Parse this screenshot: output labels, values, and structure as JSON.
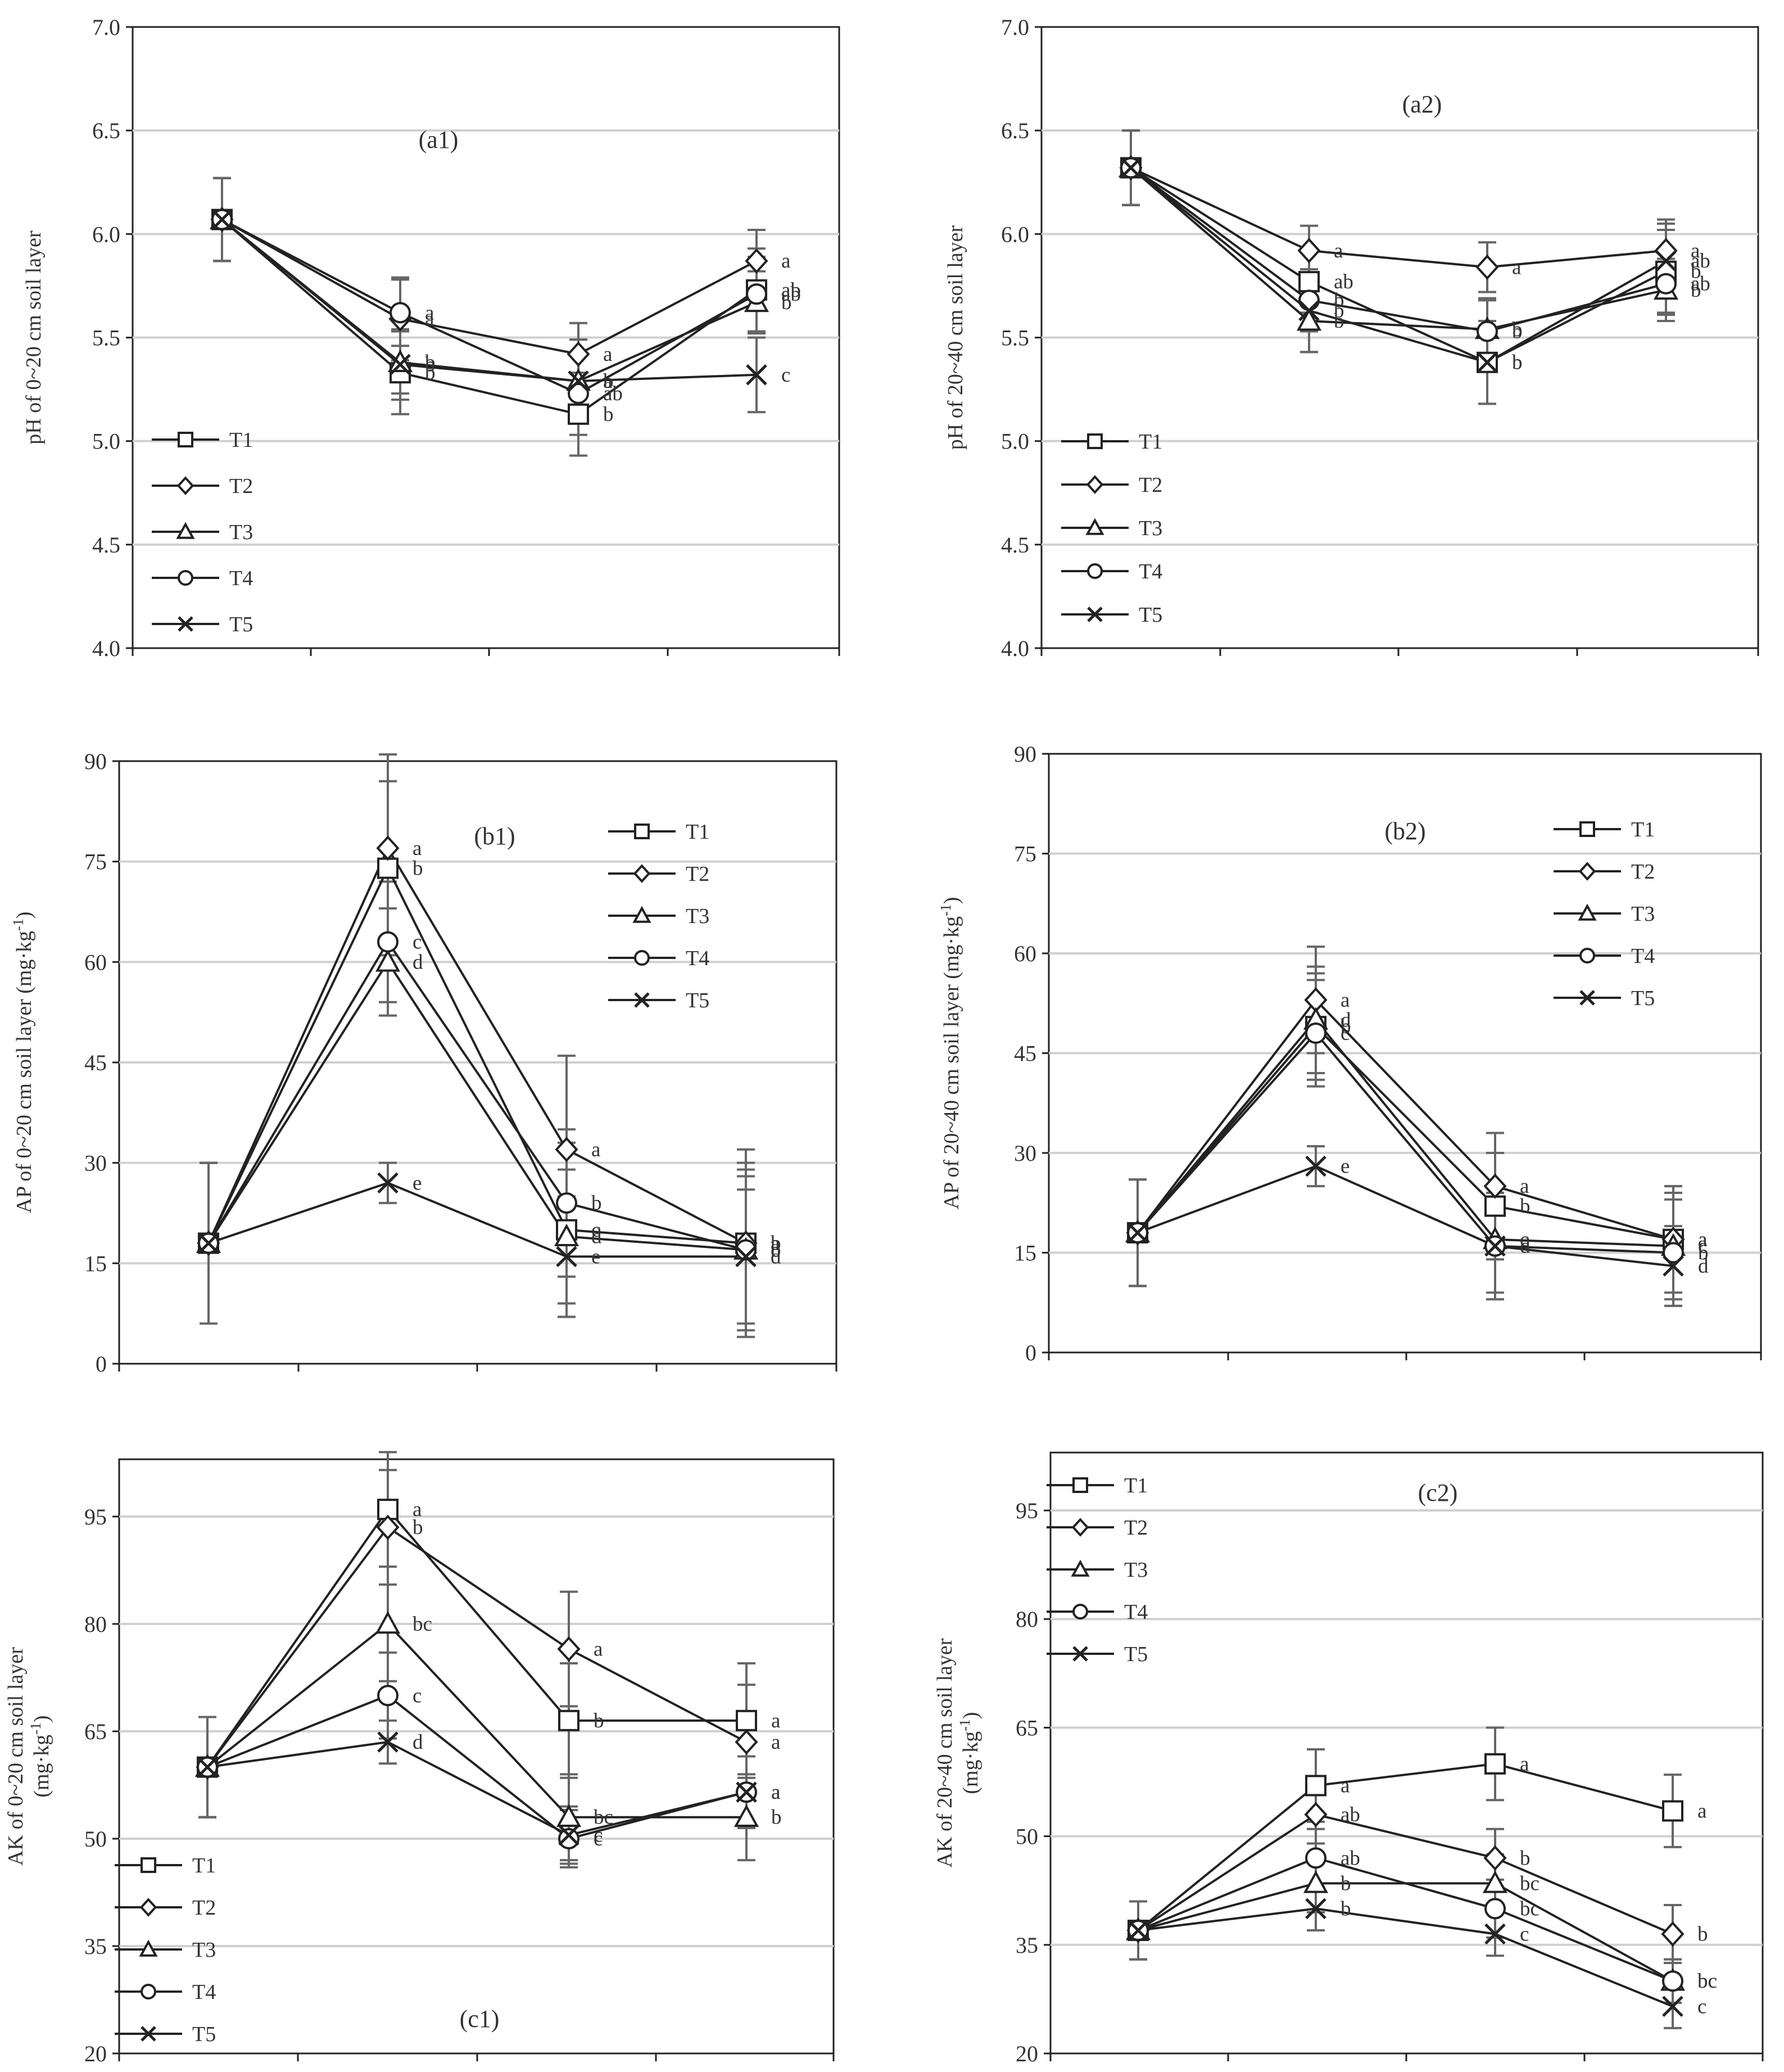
{
  "chart_data": [
    {
      "type": "line",
      "title": "(a1)",
      "ylabel": "pH of 0~20 cm soil layer",
      "ylim": [
        4.0,
        7.0
      ],
      "yticks": [
        "4.0",
        "4.5",
        "5.0",
        "5.5",
        "6.0",
        "6.5",
        "7.0"
      ],
      "legend": "bottom-left",
      "series": [
        {
          "name": "T1",
          "values": [
            6.07,
            5.33,
            5.13,
            5.73
          ],
          "errors": [
            0.2,
            0.2,
            0.2,
            0.2
          ]
        },
        {
          "name": "T2",
          "values": [
            6.07,
            5.59,
            5.42,
            5.87
          ],
          "errors": [
            0.2,
            0.2,
            0.15,
            0.15
          ]
        },
        {
          "name": "T3",
          "values": [
            6.07,
            5.38,
            5.29,
            5.67
          ],
          "errors": [
            0.2,
            0.15,
            0.2,
            0.15
          ]
        },
        {
          "name": "T4",
          "values": [
            6.07,
            5.62,
            5.23,
            5.71
          ],
          "errors": [
            0.2,
            0.16,
            0.2,
            0.18
          ]
        },
        {
          "name": "T5",
          "values": [
            6.07,
            5.37,
            5.29,
            5.32
          ],
          "errors": [
            0.2,
            0.17,
            0.2,
            0.18
          ]
        }
      ],
      "letters": [
        [
          "",
          "b",
          "b",
          "ab"
        ],
        [
          "",
          "a",
          "a",
          "a"
        ],
        [
          "",
          "b",
          "a",
          "b"
        ],
        [
          "",
          "a",
          "ab",
          "ab"
        ],
        [
          "",
          "b",
          "b",
          "c"
        ]
      ]
    },
    {
      "type": "line",
      "title": "(a2)",
      "ylabel": "pH of 20~40 cm soil layer",
      "ylim": [
        4.0,
        7.0
      ],
      "yticks": [
        "4.0",
        "4.5",
        "5.0",
        "5.5",
        "6.0",
        "6.5",
        "7.0"
      ],
      "legend": "bottom-left",
      "series": [
        {
          "name": "T1",
          "values": [
            6.32,
            5.77,
            5.38,
            5.82
          ],
          "errors": [
            0.18,
            0.15,
            0.2,
            0.2
          ]
        },
        {
          "name": "T2",
          "values": [
            6.32,
            5.92,
            5.84,
            5.92
          ],
          "errors": [
            0.18,
            0.12,
            0.12,
            0.15
          ]
        },
        {
          "name": "T3",
          "values": [
            6.32,
            5.58,
            5.54,
            5.73
          ],
          "errors": [
            0.18,
            0.15,
            0.15,
            0.15
          ]
        },
        {
          "name": "T4",
          "values": [
            6.32,
            5.68,
            5.53,
            5.76
          ],
          "errors": [
            0.18,
            0.15,
            0.15,
            0.15
          ]
        },
        {
          "name": "T5",
          "values": [
            6.32,
            5.63,
            5.38,
            5.87
          ],
          "errors": [
            0.18,
            0.2,
            0.2,
            0.18
          ]
        }
      ],
      "letters": [
        [
          "",
          "ab",
          "b",
          "b"
        ],
        [
          "",
          "a",
          "a",
          "a"
        ],
        [
          "",
          "b",
          "b",
          "b"
        ],
        [
          "",
          "b",
          "b",
          "ab"
        ],
        [
          "",
          "b",
          "b",
          "ab"
        ]
      ]
    },
    {
      "type": "line",
      "title": "(b1)",
      "ylabel": "AP of 0~20 cm soil layer (mg·kg",
      "ylabel_sup": "-1",
      "ylabel_end": ")",
      "ylim": [
        0,
        90
      ],
      "yticks": [
        "0",
        "15",
        "30",
        "45",
        "60",
        "75",
        "90"
      ],
      "legend": "top-right",
      "series": [
        {
          "name": "T1",
          "values": [
            18,
            74,
            20,
            18
          ],
          "errors": [
            12,
            13,
            13,
            12
          ]
        },
        {
          "name": "T2",
          "values": [
            18,
            77,
            32,
            18
          ],
          "errors": [
            12,
            14,
            14,
            14
          ]
        },
        {
          "name": "T3",
          "values": [
            18,
            60,
            19,
            17
          ],
          "errors": [
            12,
            8,
            10,
            11
          ]
        },
        {
          "name": "T4",
          "values": [
            18,
            63,
            24,
            17
          ],
          "errors": [
            12,
            9,
            11,
            12
          ]
        },
        {
          "name": "T5",
          "values": [
            18,
            27,
            16,
            16
          ],
          "errors": [
            12,
            3,
            9,
            10
          ]
        }
      ],
      "letters": [
        [
          "",
          "b",
          "c",
          "b"
        ],
        [
          "",
          "a",
          "a",
          "a"
        ],
        [
          "",
          "d",
          "d",
          "c"
        ],
        [
          "",
          "c",
          "b",
          "b"
        ],
        [
          "",
          "e",
          "e",
          "d"
        ]
      ]
    },
    {
      "type": "line",
      "title": "(b2)",
      "ylabel": "AP of 20~40 cm soil layer (mg·kg",
      "ylabel_sup": "-1",
      "ylabel_end": ")",
      "ylim": [
        0,
        90
      ],
      "yticks": [
        "0",
        "15",
        "30",
        "45",
        "60",
        "75",
        "90"
      ],
      "legend": "top-right",
      "series": [
        {
          "name": "T1",
          "values": [
            18,
            49,
            22,
            17
          ],
          "errors": [
            8,
            8,
            8,
            8
          ]
        },
        {
          "name": "T2",
          "values": [
            18,
            53,
            25,
            17
          ],
          "errors": [
            8,
            8,
            8,
            8
          ]
        },
        {
          "name": "T3",
          "values": [
            18,
            50,
            17,
            16
          ],
          "errors": [
            8,
            8,
            8,
            8
          ]
        },
        {
          "name": "T4",
          "values": [
            18,
            48,
            16,
            15
          ],
          "errors": [
            8,
            8,
            8,
            8
          ]
        },
        {
          "name": "T5",
          "values": [
            18,
            28,
            16,
            13
          ],
          "errors": [
            8,
            3,
            8,
            6
          ]
        }
      ],
      "letters": [
        [
          "",
          "b",
          "b",
          "a"
        ],
        [
          "",
          "a",
          "a",
          "a"
        ],
        [
          "",
          "d",
          "c",
          "c"
        ],
        [
          "",
          "c",
          "d",
          "b"
        ],
        [
          "",
          "e",
          "d",
          "d"
        ]
      ]
    },
    {
      "type": "line",
      "title": "(c1)",
      "ylabel": "AK of 0~20 cm soil layer",
      "ylabel2": "(mg·kg",
      "ylabel2_sup": "-1",
      "ylabel2_end": ")",
      "ylim": [
        20,
        103
      ],
      "yticks": [
        "20",
        "35",
        "50",
        "65",
        "80",
        "95"
      ],
      "legend": "bottom-left",
      "series": [
        {
          "name": "T1",
          "values": [
            60,
            96,
            66.5,
            66.5
          ],
          "errors": [
            7,
            8,
            8,
            8
          ]
        },
        {
          "name": "T2",
          "values": [
            60,
            93.5,
            76.5,
            63.5
          ],
          "errors": [
            7,
            8,
            8,
            8
          ]
        },
        {
          "name": "T3",
          "values": [
            60,
            80,
            53,
            53
          ],
          "errors": [
            7,
            8,
            6,
            6
          ]
        },
        {
          "name": "T4",
          "values": [
            60,
            70,
            50,
            56.5
          ],
          "errors": [
            7,
            6,
            4,
            5
          ]
        },
        {
          "name": "T5",
          "values": [
            60,
            63.5,
            50.5,
            56.5
          ],
          "errors": [
            7,
            3,
            4,
            5
          ]
        }
      ],
      "letters": [
        [
          "",
          "a",
          "b",
          "a"
        ],
        [
          "",
          "b",
          "a",
          "a"
        ],
        [
          "",
          "bc",
          "bc",
          "b"
        ],
        [
          "",
          "c",
          "c",
          "a"
        ],
        [
          "",
          "d",
          "c",
          "a"
        ]
      ]
    },
    {
      "type": "line",
      "title": "(c2)",
      "ylabel": "AK of 20~40 cm soil layer",
      "ylabel2": "(mg·kg",
      "ylabel2_sup": "-1",
      "ylabel2_end": ")",
      "ylim": [
        20,
        103
      ],
      "yticks": [
        "20",
        "35",
        "50",
        "65",
        "80",
        "95"
      ],
      "legend": "top-left",
      "series": [
        {
          "name": "T1",
          "values": [
            37,
            57,
            60,
            53.5
          ],
          "errors": [
            4,
            5,
            5,
            5
          ]
        },
        {
          "name": "T2",
          "values": [
            37,
            53,
            47,
            36.5
          ],
          "errors": [
            4,
            4,
            4,
            4
          ]
        },
        {
          "name": "T3",
          "values": [
            37,
            43.5,
            43.5,
            30
          ],
          "errors": [
            4,
            4,
            4,
            3
          ]
        },
        {
          "name": "T4",
          "values": [
            37,
            47,
            40,
            30
          ],
          "errors": [
            4,
            4,
            4,
            3
          ]
        },
        {
          "name": "T5",
          "values": [
            37,
            40,
            36.5,
            26.5
          ],
          "errors": [
            4,
            3,
            3,
            3
          ]
        }
      ],
      "letters": [
        [
          "",
          "a",
          "a",
          "a"
        ],
        [
          "",
          "ab",
          "b",
          "b"
        ],
        [
          "",
          "b",
          "bc",
          "bc"
        ],
        [
          "",
          "ab",
          "bc",
          "bc"
        ],
        [
          "",
          "b",
          "c",
          "c"
        ]
      ]
    }
  ]
}
